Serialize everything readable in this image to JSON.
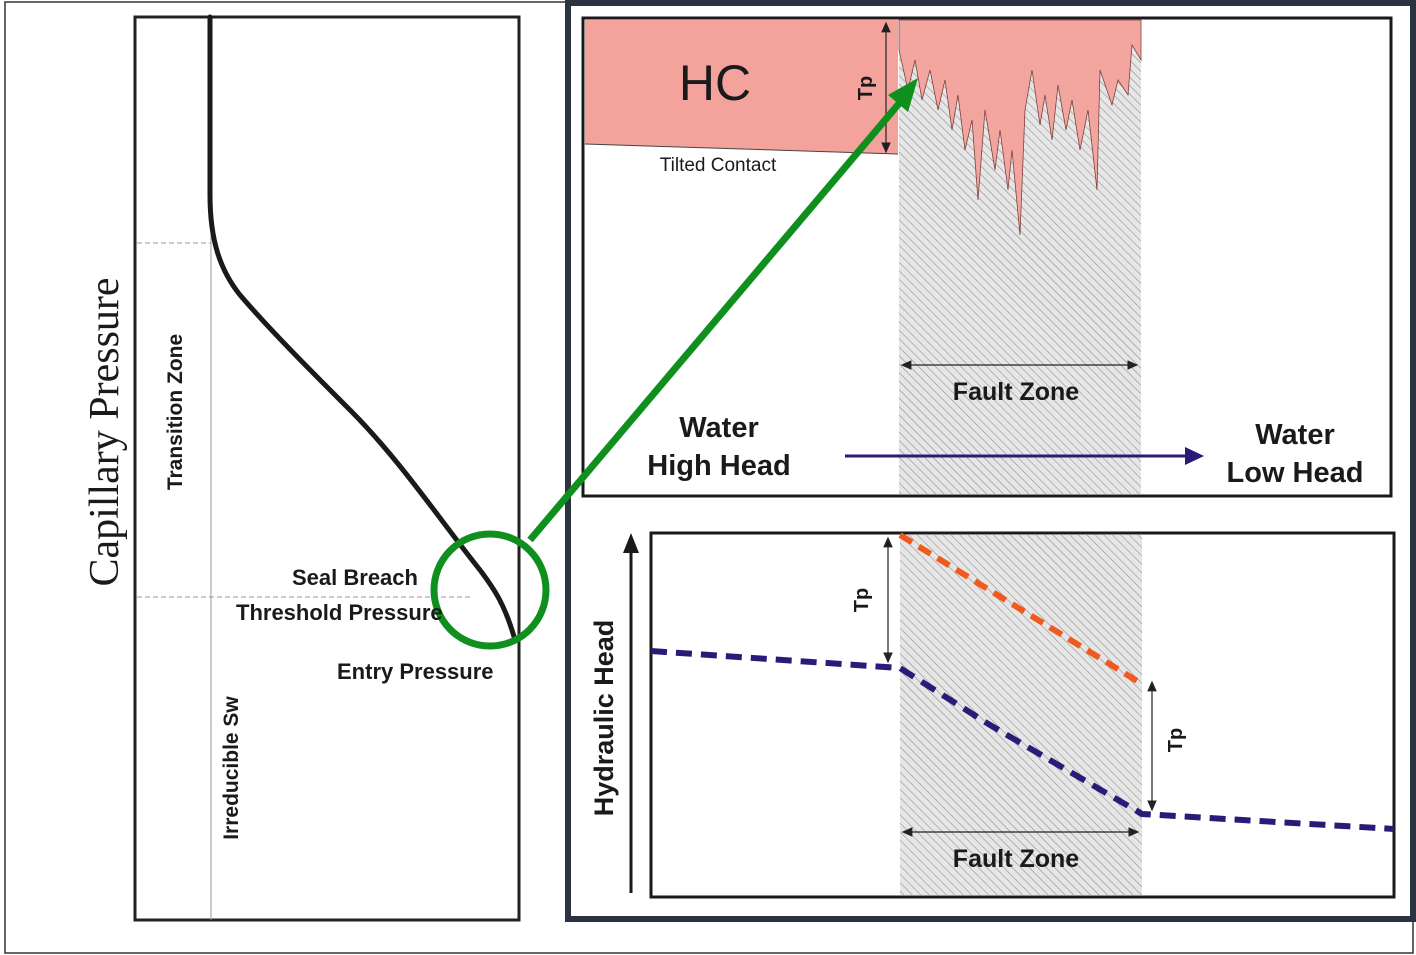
{
  "left_panel": {
    "y_axis_label": "Capillary Pressure",
    "transition_zone": "Transition Zone",
    "irreducible_sw": "Irreducible Sw",
    "seal_breach": "Seal Breach",
    "threshold_pressure": "Threshold Pressure",
    "entry_pressure": "Entry Pressure"
  },
  "top_panel": {
    "hc_label": "HC",
    "tilted_contact": "Tilted Contact",
    "tp_label": "Tp",
    "fault_zone": "Fault Zone",
    "water_high_line1": "Water",
    "water_high_line2": "High Head",
    "water_low_line1": "Water",
    "water_low_line2": "Low Head"
  },
  "bottom_panel": {
    "y_axis_label": "Hydraulic Head",
    "tp_label_1": "Tp",
    "tp_label_2": "Tp",
    "fault_zone": "Fault Zone"
  },
  "colors": {
    "hc_fill": "#f4a39c",
    "arrow_green": "#0e8f1e",
    "water_line": "#2a1b78",
    "hc_line": "#f05a1e",
    "panel_border": "#2b3340"
  }
}
